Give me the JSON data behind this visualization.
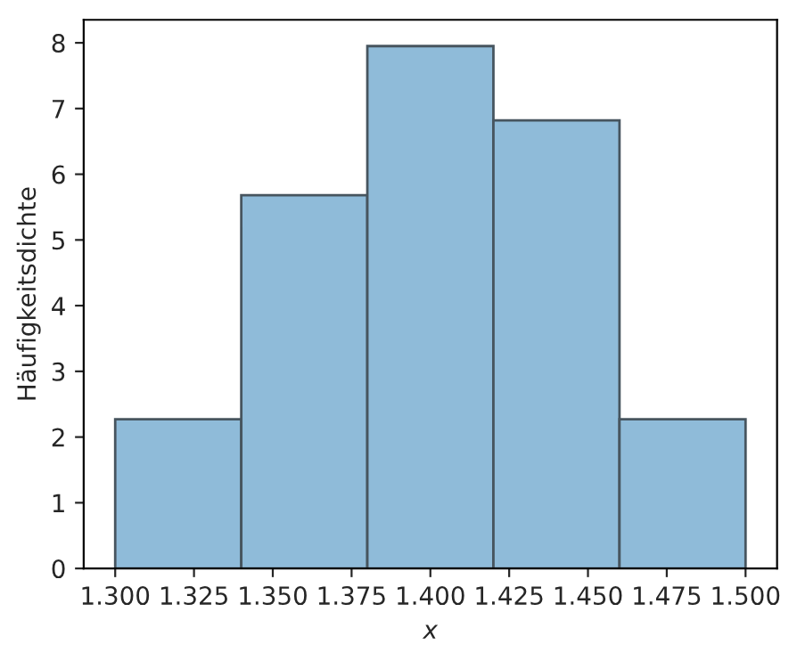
{
  "chart_data": {
    "type": "histogram",
    "xlabel": "x",
    "ylabel": "Häufigkeitsdichte",
    "bins": [
      1.3,
      1.34,
      1.38,
      1.42,
      1.46,
      1.5
    ],
    "values": [
      2.27,
      5.68,
      7.95,
      6.82,
      2.27
    ],
    "color": "#8fbbd9",
    "xlim": [
      1.29,
      1.51
    ],
    "ylim": [
      0,
      8.35
    ],
    "xticks": [
      {
        "value": 1.3,
        "label": "1.300"
      },
      {
        "value": 1.325,
        "label": "1.325"
      },
      {
        "value": 1.35,
        "label": "1.350"
      },
      {
        "value": 1.375,
        "label": "1.375"
      },
      {
        "value": 1.4,
        "label": "1.400"
      },
      {
        "value": 1.425,
        "label": "1.425"
      },
      {
        "value": 1.45,
        "label": "1.450"
      },
      {
        "value": 1.475,
        "label": "1.475"
      },
      {
        "value": 1.5,
        "label": "1.500"
      }
    ],
    "yticks": [
      0,
      1,
      2,
      3,
      4,
      5,
      6,
      7,
      8
    ],
    "grid": false
  }
}
